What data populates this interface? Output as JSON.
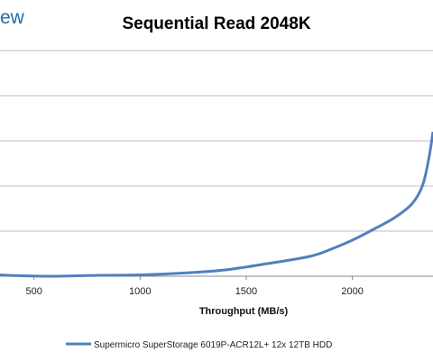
{
  "logo_text": "ew",
  "chart_data": {
    "type": "line",
    "title": "Sequential Read 2048K",
    "xlabel": "Throughput (MB/s)",
    "ylabel": "",
    "xlim": [
      340,
      2380
    ],
    "ylim": [
      0,
      300
    ],
    "x_ticks": [
      500,
      1000,
      1500,
      2000
    ],
    "y_gridlines": [
      50,
      100,
      150,
      200,
      250
    ],
    "grid": true,
    "legend_position": "bottom",
    "series": [
      {
        "name": "Supermicro SuperStorage 6019P-ACR12L+ 12x 12TB HDD",
        "color": "#4f81bd",
        "x": [
          340,
          450,
          600,
          800,
          1000,
          1200,
          1400,
          1600,
          1800,
          1900,
          2000,
          2100,
          2200,
          2280,
          2330,
          2360,
          2380
        ],
        "y": [
          1.5,
          0.5,
          0,
          1,
          1.5,
          3.5,
          7,
          14,
          22,
          30,
          40,
          52,
          65,
          80,
          100,
          130,
          160
        ]
      }
    ]
  }
}
